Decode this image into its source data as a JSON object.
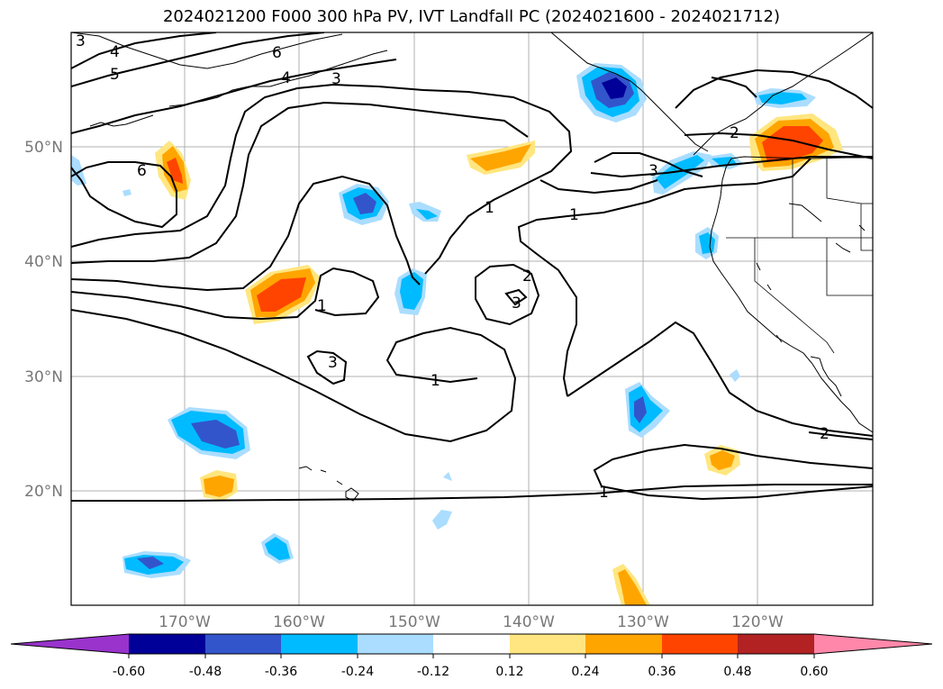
{
  "title": "2024021200 F000 300 hPa PV, IVT Landfall PC (2024021600 - 2024021712)",
  "map": {
    "lat_ticks": [
      "50°N",
      "40°N",
      "30°N",
      "20°N"
    ],
    "lon_ticks": [
      "170°W",
      "160°W",
      "150°W",
      "140°W",
      "130°W",
      "120°W"
    ],
    "pv_contour_labels": [
      "3",
      "4",
      "5",
      "6",
      "4",
      "3",
      "6",
      "1",
      "1",
      "2",
      "3",
      "1",
      "3",
      "1",
      "2",
      "1",
      "2",
      "3"
    ]
  },
  "colorbar": {
    "ticks": [
      "-0.60",
      "-0.48",
      "-0.36",
      "-0.24",
      "-0.12",
      "0.12",
      "0.24",
      "0.36",
      "0.48",
      "0.60"
    ],
    "colors": [
      "#9933cc",
      "#000099",
      "#3355cc",
      "#00bbff",
      "#aaddff",
      "#ffffff",
      "#ffe680",
      "#ffa500",
      "#ff4400",
      "#b22222",
      "#ff88aa"
    ]
  }
}
